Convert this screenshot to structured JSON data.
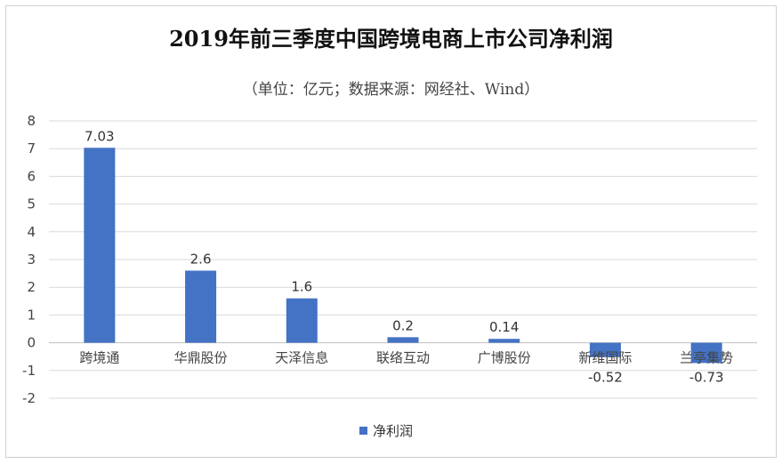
{
  "chart_data": {
    "type": "bar",
    "title": "2019年前三季度中国跨境电商上市公司净利润",
    "subtitle": "（单位：亿元；数据来源：网经社、Wind）",
    "categories": [
      "跨境通",
      "华鼎股份",
      "天泽信息",
      "联络互动",
      "广博股份",
      "新维国际",
      "兰亭集势"
    ],
    "series": [
      {
        "name": "净利润",
        "values": [
          7.03,
          2.6,
          1.6,
          0.2,
          0.14,
          -0.52,
          -0.73
        ],
        "color": "#4472c4"
      }
    ],
    "data_labels": [
      "7.03",
      "2.6",
      "1.6",
      "0.2",
      "0.14",
      "-0.52",
      "-0.73"
    ],
    "ylim": [
      -2,
      8
    ],
    "yticks": [
      8,
      7,
      6,
      5,
      4,
      3,
      2,
      1,
      0,
      -1,
      -2
    ],
    "grid": true,
    "legend_position": "bottom"
  }
}
